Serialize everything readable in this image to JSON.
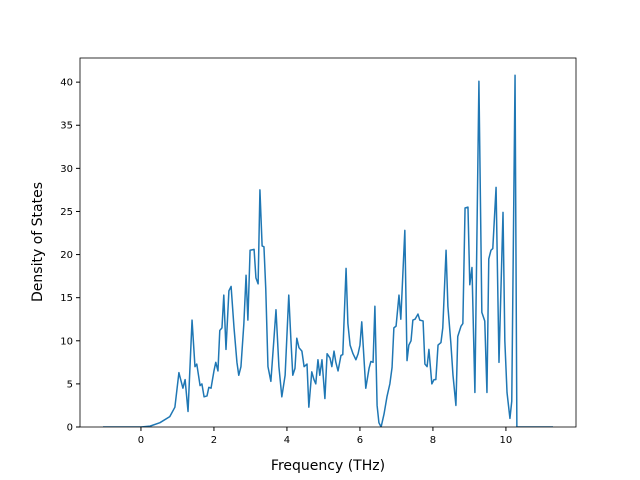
{
  "chart_data": {
    "type": "line",
    "xlabel": "Frequency (THz)",
    "ylabel": "Density of States",
    "xlim": [
      -1.67,
      11.92
    ],
    "xticks": [
      0,
      2,
      4,
      6,
      8,
      10
    ],
    "ylim": [
      0,
      42.8
    ],
    "yticks": [
      0,
      5,
      10,
      15,
      20,
      25,
      30,
      35,
      40
    ],
    "grid": false,
    "series": [
      {
        "color": "#1f77b4",
        "x": [
          -1.04,
          0,
          0.25,
          0.52,
          0.79,
          0.93,
          1.04,
          1.15,
          1.21,
          1.29,
          1.4,
          1.48,
          1.53,
          1.62,
          1.67,
          1.73,
          1.81,
          1.86,
          1.92,
          2.0,
          2.05,
          2.11,
          2.16,
          2.22,
          2.27,
          2.33,
          2.41,
          2.47,
          2.55,
          2.63,
          2.68,
          2.74,
          2.82,
          2.88,
          2.93,
          2.99,
          3.1,
          3.15,
          3.21,
          3.26,
          3.32,
          3.37,
          3.42,
          3.48,
          3.56,
          3.64,
          3.7,
          3.78,
          3.86,
          3.95,
          4.05,
          4.11,
          4.16,
          4.22,
          4.27,
          4.33,
          4.41,
          4.47,
          4.55,
          4.6,
          4.68,
          4.74,
          4.79,
          4.85,
          4.9,
          4.96,
          5.04,
          5.1,
          5.18,
          5.23,
          5.29,
          5.34,
          5.4,
          5.48,
          5.53,
          5.62,
          5.67,
          5.73,
          5.81,
          5.89,
          5.95,
          6.0,
          6.05,
          6.11,
          6.16,
          6.25,
          6.3,
          6.36,
          6.41,
          6.47,
          6.52,
          6.58,
          6.66,
          6.74,
          6.82,
          6.88,
          6.93,
          6.99,
          7.07,
          7.12,
          7.23,
          7.29,
          7.34,
          7.4,
          7.45,
          7.51,
          7.59,
          7.64,
          7.73,
          7.78,
          7.84,
          7.89,
          7.97,
          8.03,
          8.08,
          8.14,
          8.22,
          8.27,
          8.36,
          8.41,
          8.49,
          8.55,
          8.63,
          8.68,
          8.77,
          8.82,
          8.88,
          8.96,
          9.01,
          9.07,
          9.15,
          9.26,
          9.34,
          9.42,
          9.48,
          9.53,
          9.59,
          9.64,
          9.73,
          9.81,
          9.92,
          9.97,
          10.03,
          10.11,
          10.16,
          10.25,
          10.3,
          11.29
        ],
        "values": [
          0,
          0,
          0.1,
          0.5,
          1.2,
          2.3,
          6.3,
          4.5,
          5.5,
          1.8,
          12.4,
          7,
          7.3,
          4.8,
          5,
          3.5,
          3.6,
          4.6,
          4.5,
          6.5,
          7.5,
          6.5,
          11.2,
          11.5,
          15.3,
          9,
          15.8,
          16.3,
          11.5,
          7.5,
          6,
          7,
          12,
          17.6,
          12.4,
          20.5,
          20.6,
          17.3,
          16.6,
          27.5,
          21,
          20.9,
          16,
          7,
          5.3,
          10,
          13.6,
          7,
          3.5,
          6,
          15.3,
          10,
          6,
          6.8,
          10.3,
          9.2,
          8.8,
          7,
          7.3,
          2.3,
          6.4,
          5.5,
          5,
          7.8,
          6,
          7.8,
          3.3,
          8.5,
          8,
          7,
          8.8,
          7.5,
          6.5,
          8.3,
          8.4,
          18.4,
          12,
          9.5,
          8.5,
          7.8,
          8.5,
          9.5,
          12.2,
          8,
          4.5,
          6.8,
          7.6,
          7.5,
          14,
          2.5,
          0.5,
          0,
          1.5,
          3.5,
          5,
          6.9,
          11.5,
          11.7,
          15.3,
          12.5,
          22.8,
          7.7,
          9.5,
          10,
          12.4,
          12.5,
          13.1,
          12.4,
          12.3,
          7.3,
          7,
          9,
          5,
          5.5,
          5.5,
          9.5,
          9.8,
          11.5,
          20.5,
          14,
          9.8,
          6,
          2.5,
          10.5,
          11.7,
          12,
          25.4,
          25.5,
          16.5,
          18.5,
          4,
          40.1,
          13.3,
          12.3,
          4,
          19.5,
          20.5,
          20.7,
          27.8,
          7.5,
          24.9,
          10,
          4,
          1,
          3,
          40.8,
          0,
          0
        ]
      }
    ]
  }
}
